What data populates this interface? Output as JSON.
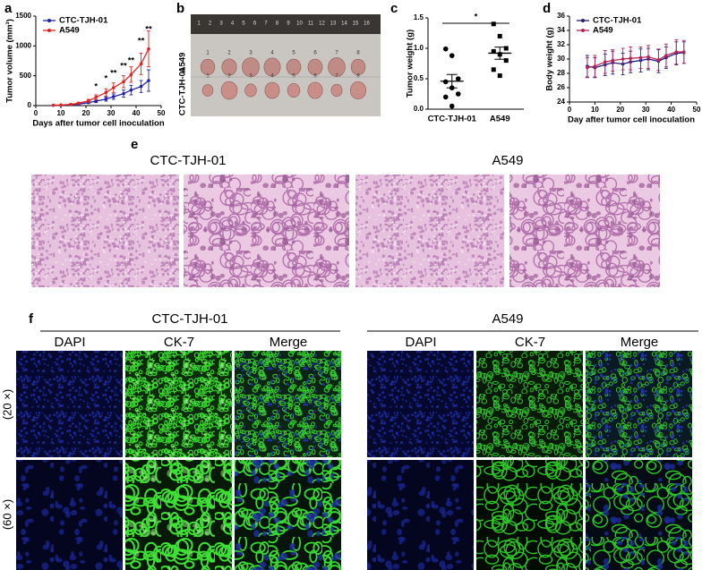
{
  "panel_letters": [
    "a",
    "b",
    "c",
    "d",
    "e",
    "f"
  ],
  "chart_data": [
    {
      "type": "line",
      "ylabel": "Tumor volume (mm³)",
      "xlabel": "Days after tumor cell inoculation",
      "xlim": [
        0,
        50
      ],
      "xticks": [
        0,
        10,
        20,
        30,
        40,
        50
      ],
      "ylim": [
        0,
        1500
      ],
      "yticks": [
        0,
        500,
        1000,
        1500
      ],
      "legend": "upper left",
      "x": [
        7,
        10,
        14,
        17,
        21,
        24,
        28,
        31,
        35,
        38,
        42,
        45
      ],
      "series": [
        {
          "name": "CTC-TJH-01",
          "color": "#1f22a8",
          "values": [
            5,
            8,
            15,
            25,
            50,
            75,
            110,
            150,
            200,
            260,
            320,
            420
          ],
          "errors": [
            3,
            4,
            6,
            10,
            15,
            25,
            35,
            45,
            60,
            80,
            100,
            180
          ]
        },
        {
          "name": "A549",
          "color": "#e02424",
          "values": [
            5,
            10,
            20,
            40,
            80,
            140,
            220,
            300,
            400,
            520,
            700,
            950
          ],
          "errors": [
            3,
            5,
            8,
            15,
            25,
            40,
            60,
            80,
            100,
            130,
            180,
            300
          ]
        }
      ],
      "annotations": [
        {
          "x": 24,
          "y": 315,
          "text": "*"
        },
        {
          "x": 28,
          "y": 450,
          "text": "*"
        },
        {
          "x": 31,
          "y": 540,
          "text": "**"
        },
        {
          "x": 35,
          "y": 660,
          "text": "**"
        },
        {
          "x": 38,
          "y": 750,
          "text": "**"
        },
        {
          "x": 42,
          "y": 1080,
          "text": "**"
        },
        {
          "x": 45,
          "y": 1275,
          "text": "**"
        }
      ]
    },
    {
      "type": "dot",
      "ylabel": "Tumor weight (g)",
      "categories": [
        "CTC-TJH-01",
        "A549"
      ],
      "ylim": [
        0,
        1.5
      ],
      "yticks": [
        {
          "value": 0,
          "label": "0.0"
        },
        0.5,
        {
          "value": 1,
          "label": "1.0"
        },
        1.5
      ],
      "values": [
        [
          0.99,
          0.88,
          0.5,
          0.45,
          0.35,
          0.25,
          0.2,
          0.05
        ],
        [
          1.4,
          1.2,
          1.0,
          0.95,
          0.9,
          0.8,
          0.65,
          0.55
        ]
      ],
      "means": [
        0.46,
        0.92
      ],
      "errors": [
        0.11,
        0.1
      ],
      "significance": "*"
    },
    {
      "type": "line",
      "ylabel": "Body weight (g)",
      "xlabel": "Day after tumor cell inoculation",
      "xlim": [
        0,
        50
      ],
      "xticks": [
        0,
        10,
        20,
        30,
        40,
        50
      ],
      "ylim": [
        24,
        36
      ],
      "yticks": [
        24,
        26,
        28,
        30,
        32,
        34,
        36
      ],
      "legend": "upper left",
      "x": [
        7,
        10,
        14,
        17,
        21,
        24,
        28,
        31,
        35,
        38,
        42,
        45
      ],
      "series": [
        {
          "name": "CTC-TJH-01",
          "color": "#2a1a78",
          "values": [
            29,
            28.8,
            29.2,
            29.5,
            29.3,
            29.6,
            29.8,
            30.0,
            29.7,
            30.2,
            30.8,
            30.9
          ],
          "errors": [
            1.5,
            1.4,
            1.5,
            1.6,
            1.5,
            1.5,
            1.6,
            1.5,
            1.6,
            1.5,
            1.6,
            1.5
          ]
        },
        {
          "name": "A549",
          "color": "#b3265a",
          "values": [
            28.8,
            29,
            29.6,
            29.8,
            30,
            30.1,
            30.2,
            30.3,
            29.9,
            30.5,
            31,
            31
          ],
          "errors": [
            1.4,
            1.5,
            1.6,
            1.5,
            1.5,
            1.6,
            1.5,
            1.6,
            1.5,
            1.6,
            1.7,
            1.6
          ]
        }
      ]
    }
  ],
  "photo": {
    "row_labels": [
      "CTC-TJH-01",
      "A549"
    ],
    "tumor_numbers": [
      "1",
      "2",
      "3",
      "4",
      "5",
      "6",
      "7",
      "8"
    ],
    "ruler_numbers": [
      "1",
      "2",
      "3",
      "4",
      "5",
      "6",
      "7",
      "8",
      "9",
      "10",
      "11",
      "12",
      "13",
      "14",
      "15",
      "16"
    ]
  },
  "histology": {
    "titles": [
      "CTC-TJH-01",
      "A549"
    ]
  },
  "immunofluorescence": {
    "groups": [
      "CTC-TJH-01",
      "A549"
    ],
    "stains": [
      "DAPI",
      "CK-7",
      "Merge"
    ],
    "magnifications": [
      "(20 ×)",
      "(60 ×)"
    ]
  }
}
